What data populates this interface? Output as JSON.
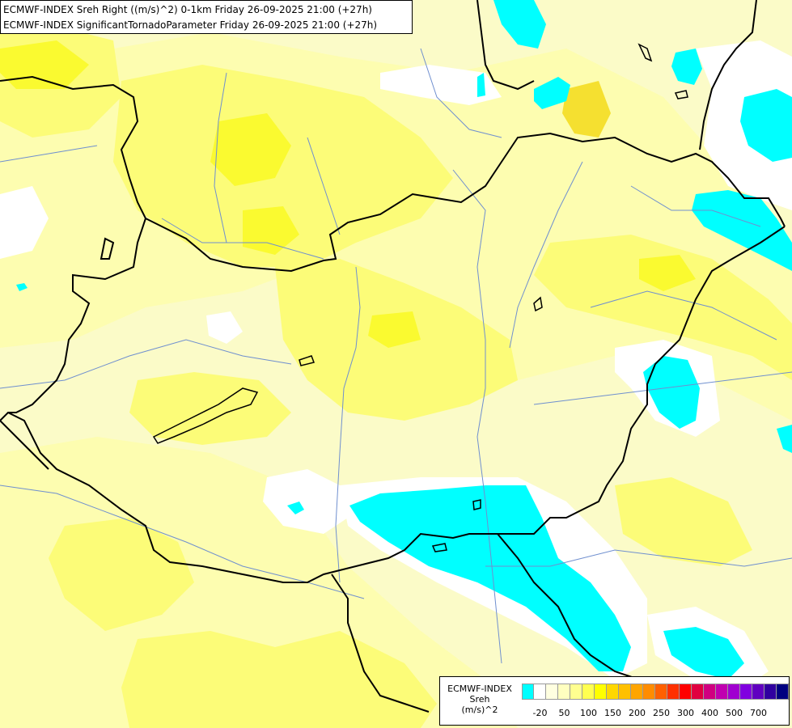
{
  "header": {
    "line1": "ECMWF-INDEX Sreh Right ((m/s)^2) 0-1km Friday 26-09-2025 21:00 (+27h)",
    "line2": "ECMWF-INDEX SignificantTornadoParameter Friday 26-09-2025 21:00 (+27h)"
  },
  "legend": {
    "title_line1": "ECMWF-INDEX",
    "title_line2": "Sreh",
    "title_line3": "(m/s)^2",
    "colors": [
      "#00ffff",
      "#ffffff",
      "#ffffe0",
      "#ffffc0",
      "#ffff90",
      "#ffff50",
      "#ffff00",
      "#ffd700",
      "#ffc000",
      "#ffa500",
      "#ff8c00",
      "#ff6000",
      "#ff3000",
      "#ff0000",
      "#e00040",
      "#d00080",
      "#c000b0",
      "#a000d0",
      "#8000e0",
      "#6000c0",
      "#3000a0",
      "#000080"
    ],
    "ticks": [
      "-20",
      "50",
      "100",
      "150",
      "200",
      "250",
      "300",
      "400",
      "500",
      "700"
    ]
  },
  "map": {
    "colors": {
      "background": "#fbfbc8",
      "light_yellow": "#fdfdb0",
      "yellow": "#fcfc78",
      "bright_yellow": "#fafa30",
      "deep_yellow": "#f5e030",
      "cyan": "#00ffff",
      "white": "#ffffff",
      "border": "#000000",
      "river": "#6f8fcf"
    }
  }
}
